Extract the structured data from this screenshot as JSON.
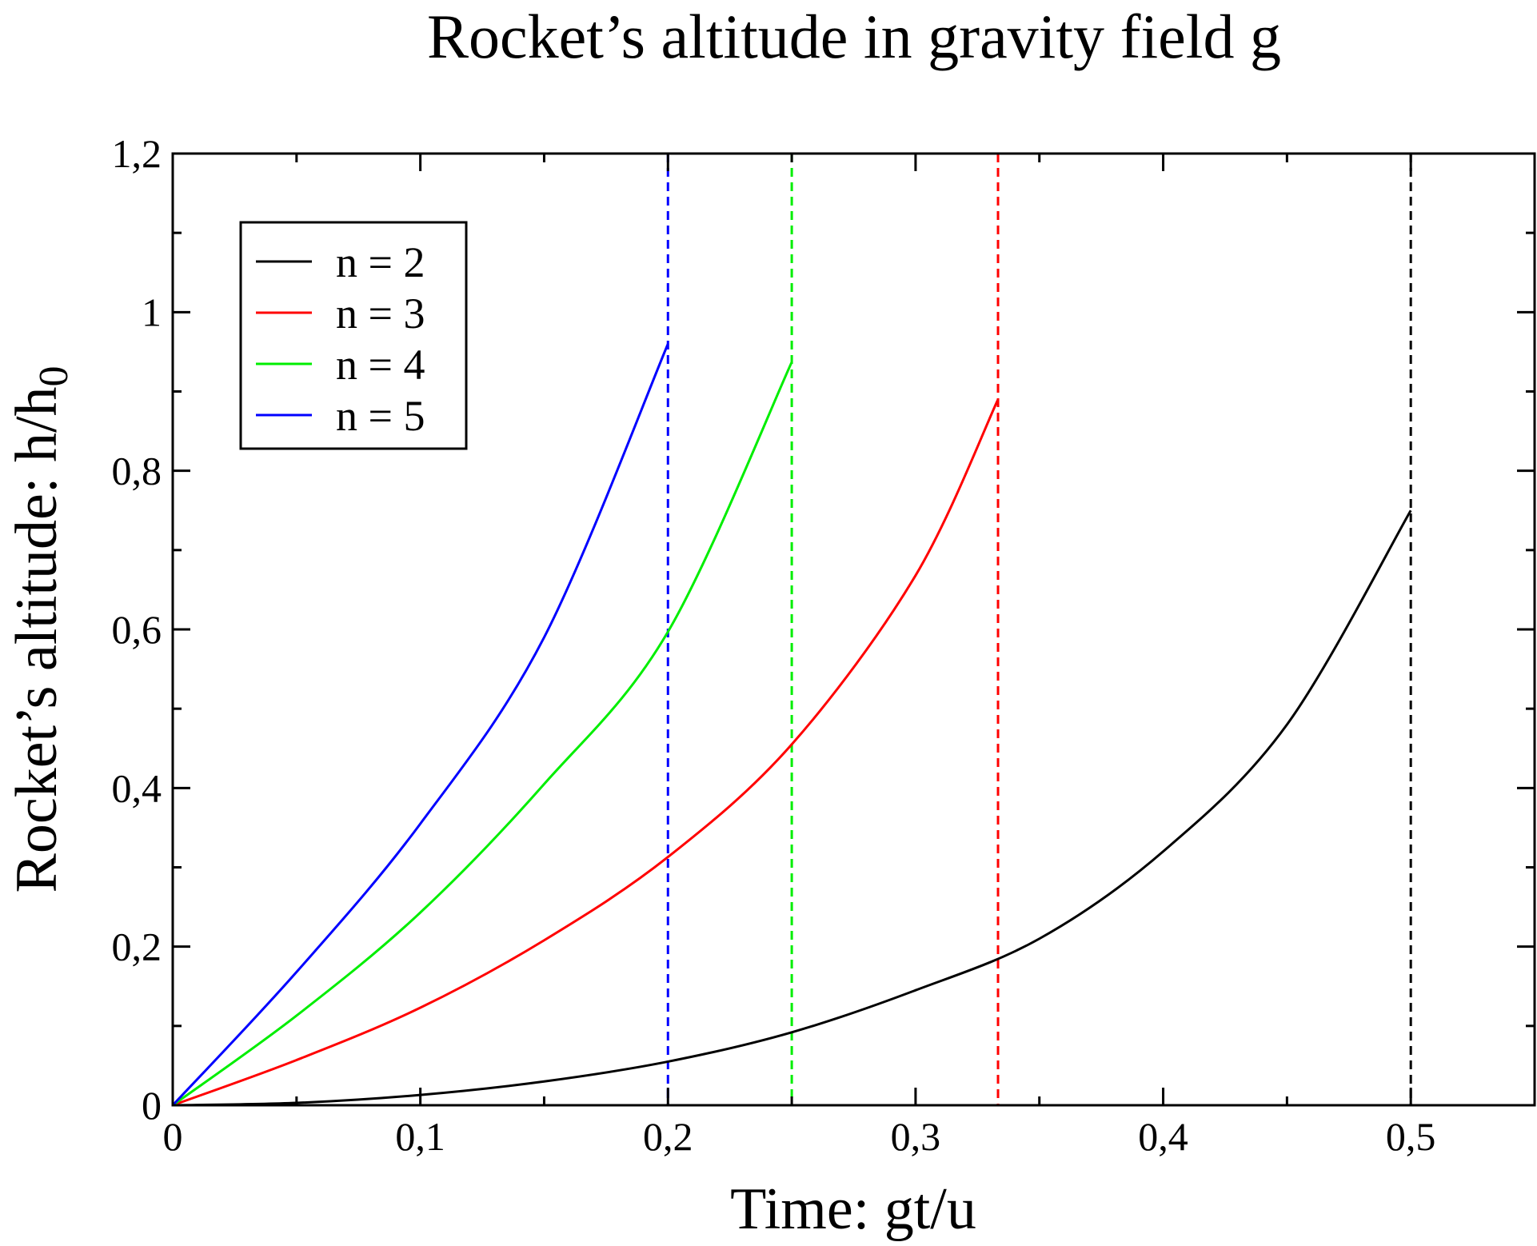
{
  "chart_data": {
    "type": "line",
    "title": "Rocket’s altitude in gravity field g",
    "xlabel": "Time: gt/u",
    "ylabel_main": "Rocket’s altitude: h/h",
    "ylabel_sub": "0",
    "xlim": [
      0,
      0.55
    ],
    "ylim": [
      0,
      1.2
    ],
    "x_major_ticks": [
      0,
      0.1,
      0.2,
      0.3,
      0.4,
      0.5
    ],
    "x_tick_labels": [
      "0",
      "0,1",
      "0,2",
      "0,3",
      "0,4",
      "0,5"
    ],
    "x_minor_step": 0.05,
    "y_major_ticks": [
      0,
      0.2,
      0.4,
      0.6,
      0.8,
      1.0,
      1.2
    ],
    "y_tick_labels": [
      "0",
      "0,2",
      "0,4",
      "0,6",
      "0,8",
      "1",
      "1,2"
    ],
    "y_minor_step": 0.1,
    "grid": false,
    "legend_position": "top-left",
    "series": [
      {
        "name": "n = 2",
        "color": "#000000",
        "x": [
          0,
          0.05,
          0.1,
          0.15,
          0.2,
          0.25,
          0.3,
          0.35,
          0.4,
          0.45,
          0.5
        ],
        "y": [
          0,
          0.003,
          0.013,
          0.03,
          0.055,
          0.092,
          0.145,
          0.21,
          0.32,
          0.48,
          0.75
        ]
      },
      {
        "name": "n = 3",
        "color": "#ff0000",
        "x": [
          0,
          0.05,
          0.1,
          0.15,
          0.2,
          0.25,
          0.3,
          0.3333
        ],
        "y": [
          0,
          0.057,
          0.123,
          0.208,
          0.313,
          0.455,
          0.668,
          0.89
        ]
      },
      {
        "name": "n = 4",
        "color": "#00ee00",
        "x": [
          0,
          0.05,
          0.1,
          0.15,
          0.2,
          0.25
        ],
        "y": [
          0,
          0.113,
          0.243,
          0.405,
          0.597,
          0.937
        ]
      },
      {
        "name": "n = 5",
        "color": "#0000ff",
        "x": [
          0,
          0.05,
          0.1,
          0.15,
          0.2
        ],
        "y": [
          0,
          0.168,
          0.355,
          0.59,
          0.96
        ]
      }
    ],
    "vertical_dashed_lines": [
      {
        "x": 0.5,
        "color": "#000000"
      },
      {
        "x": 0.3333,
        "color": "#ff0000"
      },
      {
        "x": 0.25,
        "color": "#00ee00"
      },
      {
        "x": 0.2,
        "color": "#0000ff"
      }
    ]
  }
}
